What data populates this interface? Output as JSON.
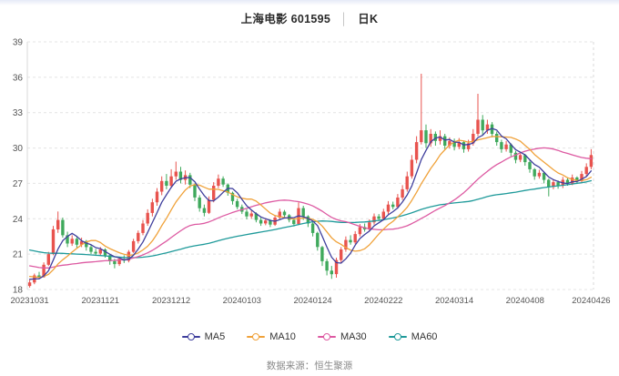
{
  "title": {
    "stock": "上海电影 601595",
    "separator": "│",
    "period": "日K"
  },
  "footer": {
    "source_label": "数据来源：恒生聚源"
  },
  "chart_data": {
    "type": "candlestick",
    "title": "上海电影 601595 日K",
    "y_axis": {
      "min": 18,
      "max": 39,
      "ticks": [
        39,
        36,
        33,
        30,
        27,
        24,
        21,
        18
      ]
    },
    "x_ticks": [
      {
        "label": "20231031",
        "index": 0
      },
      {
        "label": "20231121",
        "index": 15
      },
      {
        "label": "20231212",
        "index": 30
      },
      {
        "label": "20240103",
        "index": 45
      },
      {
        "label": "20240124",
        "index": 60
      },
      {
        "label": "20240222",
        "index": 75
      },
      {
        "label": "20240314",
        "index": 90
      },
      {
        "label": "20240408",
        "index": 105
      },
      {
        "label": "20240426",
        "index": 119
      }
    ],
    "grid": true,
    "up_color": "#e8534e",
    "down_color": "#3fa95c",
    "grid_color": "#e4e4e4",
    "axis_line_color": "#d9d9d9",
    "axis_text_color": "#555555",
    "ma_series": [
      {
        "name": "MA5",
        "window": 5,
        "color": "#3f3f9d"
      },
      {
        "name": "MA10",
        "window": 10,
        "color": "#f0a23a"
      },
      {
        "name": "MA30",
        "window": 30,
        "color": "#dd5aa2"
      },
      {
        "name": "MA60",
        "window": 60,
        "color": "#1f9a9a"
      }
    ],
    "prior_close_ramp": {
      "start": 24.0,
      "end": 18.8,
      "count": 59
    },
    "candles_format": [
      "open",
      "high",
      "low",
      "close"
    ],
    "candles": [
      [
        18.3,
        18.8,
        18.16,
        18.6
      ],
      [
        18.6,
        19.35,
        18.45,
        19.2
      ],
      [
        19.2,
        19.5,
        18.9,
        19.05
      ],
      [
        19.05,
        20.3,
        19.0,
        20.1
      ],
      [
        20.1,
        21.2,
        20.0,
        21.0
      ],
      [
        21.0,
        23.4,
        20.9,
        23.1
      ],
      [
        23.1,
        24.62,
        22.8,
        23.9
      ],
      [
        23.9,
        24.1,
        22.4,
        22.6
      ],
      [
        22.6,
        22.9,
        21.6,
        21.9
      ],
      [
        21.9,
        22.6,
        21.7,
        22.3
      ],
      [
        22.3,
        22.5,
        21.55,
        21.8
      ],
      [
        21.8,
        22.4,
        21.6,
        22.1
      ],
      [
        22.1,
        22.2,
        21.3,
        21.6
      ],
      [
        21.6,
        21.8,
        21.0,
        21.2
      ],
      [
        21.2,
        21.45,
        20.85,
        21.05
      ],
      [
        21.05,
        21.6,
        20.9,
        21.4
      ],
      [
        21.4,
        21.5,
        20.7,
        20.9
      ],
      [
        20.9,
        21.0,
        20.1,
        20.4
      ],
      [
        20.4,
        20.6,
        19.8,
        20.15
      ],
      [
        20.15,
        20.75,
        20.0,
        20.6
      ],
      [
        20.6,
        20.9,
        20.25,
        20.45
      ],
      [
        20.45,
        21.35,
        20.3,
        21.2
      ],
      [
        21.2,
        22.3,
        21.1,
        22.1
      ],
      [
        22.1,
        23.0,
        21.9,
        22.8
      ],
      [
        22.8,
        23.9,
        22.6,
        23.6
      ],
      [
        23.6,
        24.8,
        23.4,
        24.5
      ],
      [
        24.5,
        25.7,
        24.2,
        25.4
      ],
      [
        25.4,
        26.6,
        25.1,
        26.3
      ],
      [
        26.3,
        27.6,
        26.0,
        27.2
      ],
      [
        27.2,
        27.8,
        26.5,
        26.8
      ],
      [
        26.8,
        28.2,
        26.6,
        27.6
      ],
      [
        27.6,
        28.85,
        27.3,
        28.0
      ],
      [
        28.0,
        28.4,
        27.0,
        27.3
      ],
      [
        27.3,
        28.1,
        26.9,
        27.7
      ],
      [
        27.7,
        27.9,
        26.6,
        26.9
      ],
      [
        26.9,
        27.0,
        25.5,
        25.8
      ],
      [
        25.8,
        26.0,
        24.6,
        24.9
      ],
      [
        24.9,
        25.2,
        24.2,
        24.5
      ],
      [
        24.5,
        25.9,
        24.4,
        25.6
      ],
      [
        25.6,
        27.1,
        25.4,
        26.8
      ],
      [
        26.8,
        27.75,
        26.6,
        27.4
      ],
      [
        27.4,
        27.6,
        26.7,
        26.9
      ],
      [
        26.9,
        27.0,
        25.95,
        26.2
      ],
      [
        26.2,
        26.3,
        25.2,
        25.5
      ],
      [
        25.5,
        25.7,
        24.8,
        25.0
      ],
      [
        25.0,
        25.2,
        24.4,
        24.6
      ],
      [
        24.6,
        24.8,
        23.95,
        24.2
      ],
      [
        24.2,
        24.7,
        24.0,
        24.45
      ],
      [
        24.45,
        24.55,
        23.7,
        23.9
      ],
      [
        23.9,
        24.1,
        23.4,
        23.6
      ],
      [
        23.6,
        24.05,
        23.45,
        23.85
      ],
      [
        23.85,
        23.95,
        23.3,
        23.5
      ],
      [
        23.5,
        24.3,
        23.4,
        24.1
      ],
      [
        24.1,
        24.85,
        23.95,
        24.6
      ],
      [
        24.6,
        24.75,
        24.1,
        24.3
      ],
      [
        24.3,
        24.4,
        23.7,
        23.9
      ],
      [
        23.9,
        24.0,
        23.35,
        23.55
      ],
      [
        23.55,
        25.4,
        23.45,
        24.9
      ],
      [
        24.9,
        25.1,
        23.9,
        24.2
      ],
      [
        24.2,
        24.3,
        23.3,
        23.6
      ],
      [
        23.6,
        23.7,
        22.5,
        22.8
      ],
      [
        22.8,
        22.9,
        21.3,
        21.6
      ],
      [
        21.6,
        21.7,
        20.0,
        20.4
      ],
      [
        20.4,
        20.6,
        19.2,
        19.6
      ],
      [
        19.6,
        20.0,
        18.9,
        19.3
      ],
      [
        19.3,
        20.7,
        19.0,
        20.5
      ],
      [
        20.5,
        21.6,
        20.2,
        21.4
      ],
      [
        21.4,
        22.5,
        21.2,
        22.2
      ],
      [
        22.2,
        22.6,
        21.8,
        22.0
      ],
      [
        22.0,
        22.95,
        21.85,
        22.7
      ],
      [
        22.7,
        23.55,
        22.5,
        23.3
      ],
      [
        23.3,
        23.6,
        22.9,
        23.1
      ],
      [
        23.1,
        23.95,
        22.95,
        23.7
      ],
      [
        23.7,
        24.45,
        23.5,
        24.2
      ],
      [
        24.2,
        24.4,
        23.8,
        24.0
      ],
      [
        24.0,
        24.85,
        23.85,
        24.6
      ],
      [
        24.6,
        25.5,
        24.4,
        25.2
      ],
      [
        25.2,
        25.45,
        24.8,
        25.0
      ],
      [
        25.0,
        26.1,
        24.85,
        25.8
      ],
      [
        25.8,
        26.85,
        25.6,
        26.5
      ],
      [
        26.5,
        28.0,
        26.3,
        27.6
      ],
      [
        27.6,
        29.4,
        27.4,
        29.0
      ],
      [
        29.0,
        31.0,
        28.7,
        30.5
      ],
      [
        30.5,
        36.3,
        30.3,
        31.5
      ],
      [
        31.5,
        32.0,
        30.0,
        30.4
      ],
      [
        30.4,
        31.6,
        30.1,
        31.2
      ],
      [
        31.2,
        31.4,
        30.2,
        30.6
      ],
      [
        30.6,
        31.5,
        30.3,
        31.0
      ],
      [
        31.0,
        31.2,
        29.9,
        30.2
      ],
      [
        30.2,
        30.9,
        29.95,
        30.6
      ],
      [
        30.6,
        30.8,
        29.8,
        30.1
      ],
      [
        30.1,
        30.85,
        29.9,
        30.5
      ],
      [
        30.5,
        30.6,
        29.6,
        29.9
      ],
      [
        29.9,
        30.7,
        29.7,
        30.4
      ],
      [
        30.4,
        31.6,
        30.2,
        31.2
      ],
      [
        31.2,
        34.6,
        31.0,
        32.4
      ],
      [
        32.4,
        32.8,
        31.1,
        31.5
      ],
      [
        31.5,
        32.4,
        31.2,
        32.0
      ],
      [
        32.0,
        32.2,
        30.9,
        31.2
      ],
      [
        31.2,
        31.4,
        30.2,
        30.5
      ],
      [
        30.5,
        30.7,
        29.6,
        29.9
      ],
      [
        29.9,
        30.6,
        29.7,
        30.3
      ],
      [
        30.3,
        30.4,
        29.3,
        29.6
      ],
      [
        29.6,
        29.75,
        28.7,
        29.0
      ],
      [
        29.0,
        29.7,
        28.8,
        29.4
      ],
      [
        29.4,
        29.5,
        28.5,
        28.8
      ],
      [
        28.8,
        28.95,
        27.9,
        28.2
      ],
      [
        28.2,
        28.3,
        27.3,
        27.6
      ],
      [
        27.6,
        28.15,
        27.4,
        27.9
      ],
      [
        27.9,
        28.0,
        27.0,
        27.3
      ],
      [
        27.3,
        27.4,
        25.9,
        26.7
      ],
      [
        26.7,
        27.35,
        26.5,
        27.1
      ],
      [
        27.1,
        27.25,
        26.55,
        26.8
      ],
      [
        26.8,
        27.55,
        26.6,
        27.3
      ],
      [
        27.3,
        27.45,
        26.8,
        27.0
      ],
      [
        27.0,
        27.75,
        26.85,
        27.5
      ],
      [
        27.5,
        27.6,
        26.95,
        27.2
      ],
      [
        27.2,
        28.05,
        27.05,
        27.8
      ],
      [
        27.8,
        28.7,
        27.6,
        28.4
      ],
      [
        28.4,
        29.9,
        28.2,
        29.4
      ]
    ]
  }
}
